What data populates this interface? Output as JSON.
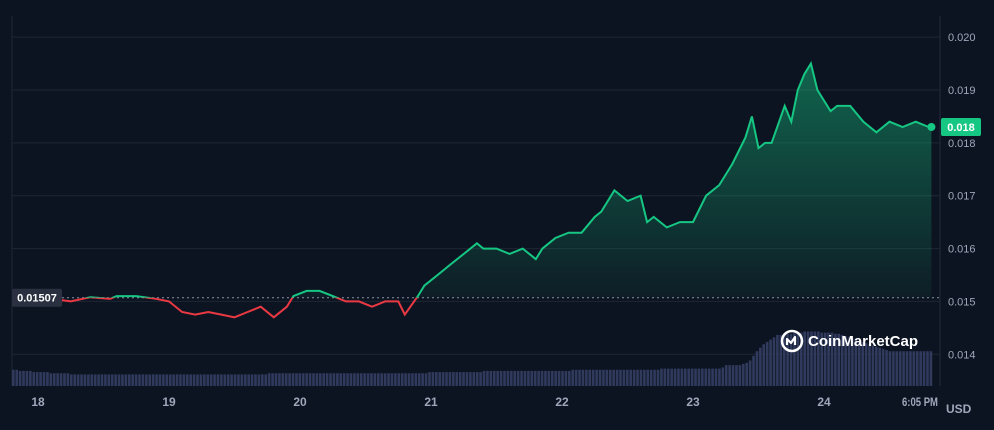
{
  "chart_data": {
    "type": "line",
    "title": "",
    "xlabel": "",
    "ylabel": "",
    "currency_label": "USD",
    "x_tick_labels": [
      "18",
      "19",
      "20",
      "21",
      "22",
      "23",
      "24",
      "6:05 PM"
    ],
    "y_tick_labels": [
      "0.020",
      "0.019",
      "0.018",
      "0.017",
      "0.016",
      "0.015",
      "0.014"
    ],
    "ylim": [
      0.0134,
      0.0204
    ],
    "reference_price": 0.01507,
    "reference_label": "0.01507",
    "current_price": 0.0183,
    "current_label": "0.018",
    "grid": true,
    "colors": {
      "up": "#16c784",
      "down": "#ea3943",
      "volume": "#2f3a5c",
      "background": "#0d1421"
    },
    "series": [
      {
        "x": [
          17.95,
          18.1,
          18.25,
          18.4,
          18.55,
          18.6,
          18.75,
          18.9,
          19.0,
          19.1,
          19.2,
          19.3,
          19.4,
          19.5,
          19.6,
          19.7,
          19.8,
          19.9,
          19.95,
          20.05,
          20.15,
          20.25,
          20.35,
          20.45,
          20.55,
          20.65,
          20.75,
          20.8,
          20.9,
          20.95,
          21.05,
          21.15,
          21.25,
          21.35,
          21.4,
          21.5,
          21.6,
          21.7,
          21.8,
          21.85,
          21.95,
          22.05,
          22.15,
          22.25,
          22.3,
          22.4,
          22.5,
          22.6,
          22.65,
          22.7,
          22.8,
          22.9,
          23.0,
          23.1,
          23.2,
          23.3,
          23.4,
          23.45,
          23.5,
          23.55,
          23.6,
          23.7,
          23.75,
          23.8,
          23.85,
          23.9,
          23.95,
          24.05,
          24.1,
          24.2,
          24.3,
          24.4,
          24.5,
          24.6,
          24.7,
          24.8,
          24.82
        ],
        "y": [
          0.015,
          0.01505,
          0.015,
          0.01508,
          0.01505,
          0.0151,
          0.0151,
          0.01505,
          0.015,
          0.0148,
          0.01475,
          0.0148,
          0.01475,
          0.0147,
          0.0148,
          0.0149,
          0.0147,
          0.0149,
          0.0151,
          0.0152,
          0.0152,
          0.0151,
          0.015,
          0.015,
          0.0149,
          0.015,
          0.015,
          0.01475,
          0.0151,
          0.0153,
          0.0155,
          0.0157,
          0.0159,
          0.0161,
          0.016,
          0.016,
          0.0159,
          0.016,
          0.0158,
          0.016,
          0.0162,
          0.0163,
          0.0163,
          0.0166,
          0.0167,
          0.0171,
          0.0169,
          0.017,
          0.0165,
          0.0166,
          0.0164,
          0.0165,
          0.0165,
          0.017,
          0.0172,
          0.0176,
          0.0181,
          0.0185,
          0.0179,
          0.018,
          0.018,
          0.0187,
          0.0184,
          0.019,
          0.0193,
          0.0195,
          0.019,
          0.0186,
          0.0187,
          0.0187,
          0.0184,
          0.0182,
          0.0184,
          0.0183,
          0.0184,
          0.0183,
          0.0183
        ]
      }
    ],
    "volume": [
      14,
      14,
      13,
      13,
      13,
      13,
      12,
      12,
      12,
      12,
      12,
      11,
      11,
      11,
      11,
      11,
      11,
      10,
      10,
      10,
      10,
      10,
      10,
      10,
      10,
      10,
      10,
      10,
      10,
      10,
      10,
      10,
      10,
      10,
      10,
      10,
      10,
      10,
      10,
      10,
      10,
      10,
      10,
      10,
      10,
      10,
      10,
      10,
      10,
      10,
      10,
      10,
      10,
      10,
      10,
      10,
      10,
      10,
      10,
      10,
      10,
      10,
      10,
      10,
      10,
      10,
      10,
      10,
      10,
      10,
      10,
      10,
      10,
      10,
      10,
      11,
      11,
      11,
      11,
      11,
      11,
      11,
      11,
      11,
      11,
      11,
      11,
      11,
      11,
      11,
      11,
      11,
      11,
      11,
      11,
      11,
      11,
      11,
      11,
      11,
      11,
      11,
      11,
      11,
      11,
      11,
      11,
      11,
      11,
      11,
      11,
      11,
      11,
      11,
      11,
      11,
      11,
      11,
      11,
      11,
      11,
      11,
      12,
      12,
      12,
      12,
      12,
      12,
      12,
      12,
      12,
      12,
      12,
      12,
      12,
      12,
      12,
      12,
      13,
      13,
      13,
      13,
      13,
      13,
      13,
      13,
      13,
      13,
      13,
      13,
      13,
      13,
      13,
      13,
      13,
      13,
      13,
      13,
      13,
      13,
      13,
      13,
      13,
      13,
      14,
      14,
      14,
      14,
      14,
      14,
      14,
      14,
      14,
      14,
      14,
      14,
      14,
      14,
      14,
      14,
      14,
      14,
      14,
      14,
      14,
      14,
      14,
      14,
      14,
      14,
      15,
      15,
      15,
      15,
      15,
      15,
      15,
      15,
      15,
      15,
      15,
      15,
      15,
      15,
      15,
      15,
      15,
      15,
      16,
      18,
      18,
      18,
      18,
      18,
      19,
      20,
      22,
      26,
      30,
      33,
      36,
      38,
      40,
      42,
      44,
      44,
      45,
      45,
      45,
      46,
      46,
      46,
      47,
      47,
      47,
      47,
      47,
      46,
      46,
      46,
      46,
      45,
      45,
      44,
      43,
      42,
      41,
      40,
      39,
      38,
      37,
      36,
      35,
      34,
      33,
      32,
      31,
      30,
      30,
      30,
      30,
      30,
      30,
      30,
      30,
      30,
      30,
      30,
      30,
      30
    ],
    "watermark": "CoinMarketCap"
  }
}
